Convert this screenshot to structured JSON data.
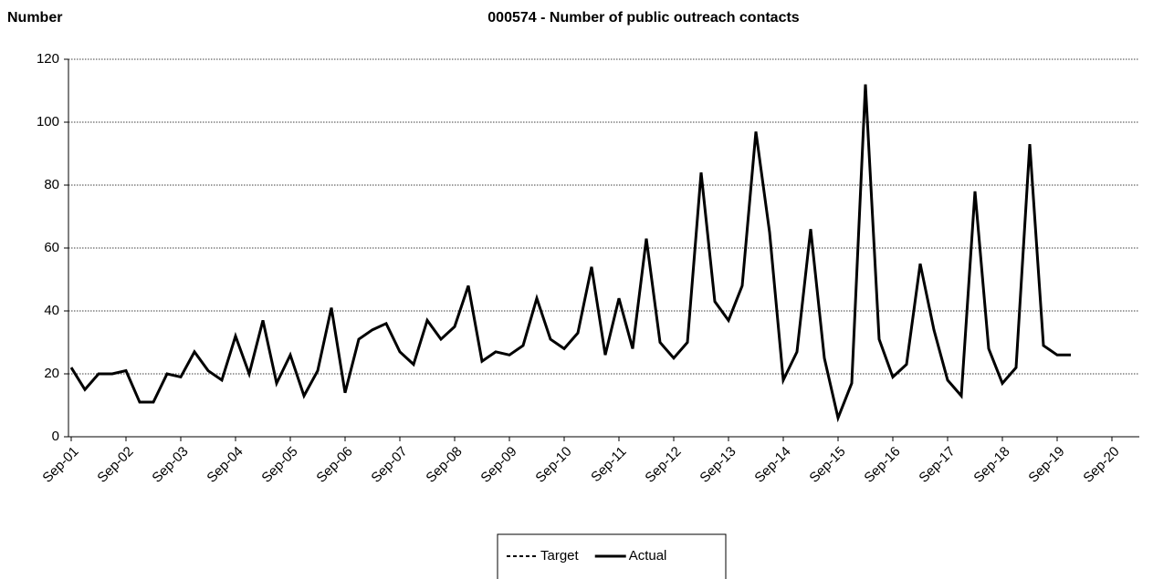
{
  "chart_data": {
    "type": "line",
    "title": "000574 - Number of public outreach contacts",
    "y_label": "Number",
    "categories": [
      "Sep-01",
      null,
      null,
      null,
      "Sep-02",
      null,
      null,
      null,
      "Sep-03",
      null,
      null,
      null,
      "Sep-04",
      null,
      null,
      null,
      "Sep-05",
      null,
      null,
      null,
      "Sep-06",
      null,
      null,
      null,
      "Sep-07",
      null,
      null,
      null,
      "Sep-08",
      null,
      null,
      null,
      "Sep-09",
      null,
      null,
      null,
      "Sep-10",
      null,
      null,
      null,
      "Sep-11",
      null,
      null,
      null,
      "Sep-12",
      null,
      null,
      null,
      "Sep-13",
      null,
      null,
      null,
      "Sep-14",
      null,
      null,
      null,
      "Sep-15",
      null,
      null,
      null,
      "Sep-16",
      null,
      null,
      null,
      "Sep-17",
      null,
      null,
      null,
      "Sep-18",
      null,
      null,
      null,
      "Sep-19",
      null,
      null,
      null,
      "Sep-20",
      null,
      null
    ],
    "series": [
      {
        "name": "Target",
        "color": "#000000",
        "dashed": true,
        "values": [
          null,
          null,
          null,
          null,
          null,
          null,
          null,
          null,
          null,
          null,
          null,
          null,
          null,
          null,
          null,
          null,
          null,
          null,
          null,
          null,
          null,
          null,
          null,
          null,
          null,
          null,
          null,
          null,
          null,
          null,
          null,
          null,
          null,
          null,
          null,
          null,
          null,
          null,
          null,
          null,
          null,
          null,
          null,
          null,
          null,
          null,
          null,
          null,
          null,
          null,
          null,
          null,
          null,
          null,
          null,
          null,
          null,
          null,
          null,
          null,
          null,
          null,
          null,
          null,
          null,
          null,
          null,
          null,
          null,
          null,
          null,
          null,
          null,
          null,
          null,
          null,
          null,
          null,
          null
        ]
      },
      {
        "name": "Actual",
        "color": "#000000",
        "dashed": false,
        "values": [
          22,
          15,
          20,
          20,
          21,
          11,
          11,
          20,
          19,
          27,
          21,
          18,
          32,
          20,
          37,
          17,
          26,
          13,
          21,
          41,
          14,
          31,
          34,
          36,
          27,
          23,
          37,
          31,
          35,
          48,
          24,
          27,
          26,
          29,
          44,
          31,
          28,
          33,
          54,
          26,
          44,
          28,
          63,
          30,
          25,
          30,
          84,
          43,
          37,
          48,
          97,
          65,
          18,
          27,
          66,
          25,
          6,
          17,
          112,
          31,
          19,
          23,
          55,
          34,
          18,
          13,
          78,
          28,
          17,
          22,
          93,
          29,
          26,
          26,
          null,
          null,
          null,
          null,
          null
        ]
      }
    ],
    "ylim": [
      0,
      120
    ],
    "yticks": [
      0,
      20,
      40,
      60,
      80,
      100,
      120
    ],
    "grid": true
  }
}
